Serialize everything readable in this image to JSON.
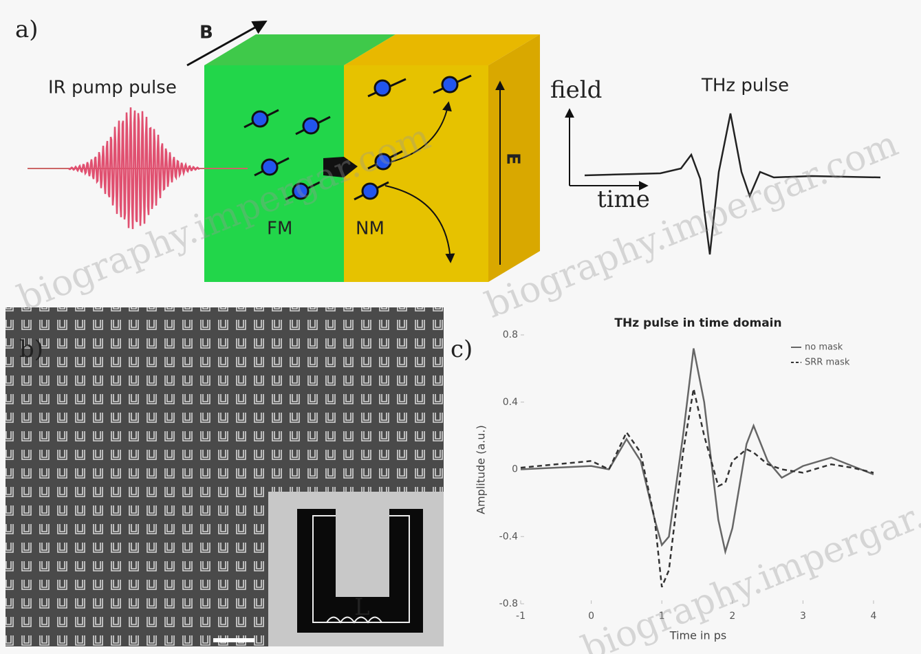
{
  "panel_a": {
    "label": "a)",
    "field_vector": "B",
    "pump_label": "IR pump pulse",
    "fm_label": "FM",
    "nm_label": "NM",
    "e_field": "E",
    "field_axis": "field",
    "time_axis": "time",
    "thz_label": "THz pulse"
  },
  "panel_b": {
    "label": "b)",
    "inset_label": "L"
  },
  "watermark": "biography.impergar.com",
  "chart_data": {
    "type": "line",
    "panel_label": "c)",
    "title": "THz pulse in time domain",
    "x_label": "Time in ps",
    "y_label": "Amplitude (a.u.)",
    "x": [
      -1,
      0,
      0.25,
      0.5,
      0.7,
      0.9,
      1,
      1.1,
      1.3,
      1.45,
      1.6,
      1.8,
      1.9,
      2,
      2.2,
      2.3,
      2.5,
      2.7,
      3,
      3.4,
      3.7,
      4
    ],
    "series": [
      {
        "name": "no mask",
        "color": "#666666",
        "dash": false,
        "values": [
          0,
          0.02,
          0,
          0.18,
          0.05,
          -0.3,
          -0.45,
          -0.4,
          0.2,
          0.72,
          0.4,
          -0.3,
          -0.49,
          -0.35,
          0.15,
          0.26,
          0.05,
          -0.05,
          0.02,
          0.07,
          0.02,
          -0.03
        ]
      },
      {
        "name": "SRR mask",
        "color": "#333333",
        "dash": true,
        "values": [
          0.01,
          0.05,
          0,
          0.22,
          0.1,
          -0.3,
          -0.7,
          -0.6,
          0.1,
          0.48,
          0.2,
          -0.1,
          -0.08,
          0.05,
          0.12,
          0.1,
          0.03,
          0,
          -0.02,
          0.03,
          0.01,
          -0.02
        ]
      }
    ],
    "xlim": [
      -1,
      4
    ],
    "xticks": [
      -1,
      0,
      1,
      2,
      3,
      4
    ],
    "ylim": [
      -0.8,
      0.8
    ],
    "yticks": [
      -0.8,
      -0.4,
      0,
      0.4,
      0.8
    ]
  }
}
